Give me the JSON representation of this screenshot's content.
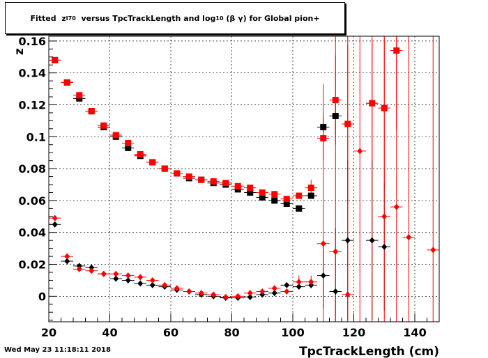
{
  "title": {
    "fitted": "Fitted",
    "z": "z",
    "z_sub": "I70",
    "versus": "versus TpcTrackLength and log",
    "log_sub": "10",
    "tail": "(β γ) for Global pion+"
  },
  "timestamp": "Wed May 23 11:18:11 2018",
  "chart_data": {
    "type": "scatter",
    "title": "Fitted zI70 versus TpcTrackLength and log10 (β γ) for Global pion+",
    "xlabel": "TpcTrackLength (cm)",
    "ylabel": "z",
    "xlim": [
      20,
      148
    ],
    "ylim": [
      -0.016,
      0.163
    ],
    "xticks": [
      20,
      40,
      60,
      80,
      100,
      120,
      140
    ],
    "yticks": [
      0,
      0.02,
      0.04,
      0.06,
      0.08,
      0.1,
      0.12,
      0.14,
      0.16
    ],
    "xtick_labels": [
      "20",
      "40",
      "60",
      "80",
      "100",
      "120",
      "140"
    ],
    "ytick_labels": [
      "0",
      "0.02",
      "0.04",
      "0.06",
      "0.08",
      "0.1",
      "0.12",
      "0.14",
      "0.16"
    ],
    "grid": true,
    "colors": {
      "black": "#000000",
      "red": "#ff0000"
    },
    "series": [
      {
        "marker": "square",
        "color": "#000000",
        "points": [
          [
            22,
            0.148
          ],
          [
            26,
            0.134
          ],
          [
            30,
            0.124
          ],
          [
            34,
            0.116
          ],
          [
            38,
            0.106
          ],
          [
            42,
            0.1
          ],
          [
            46,
            0.093
          ],
          [
            50,
            0.088
          ],
          [
            54,
            0.084
          ],
          [
            58,
            0.08
          ],
          [
            62,
            0.077
          ],
          [
            66,
            0.074
          ],
          [
            70,
            0.073
          ],
          [
            74,
            0.071
          ],
          [
            78,
            0.07
          ],
          [
            82,
            0.067
          ],
          [
            86,
            0.065
          ],
          [
            90,
            0.062
          ],
          [
            94,
            0.06
          ],
          [
            98,
            0.058
          ],
          [
            102,
            0.055
          ],
          [
            106,
            0.063
          ],
          [
            110,
            0.106
          ],
          [
            114,
            0.113
          ]
        ],
        "err": [
          0,
          0,
          0,
          0,
          0,
          0,
          0,
          0,
          0,
          0,
          0,
          0,
          0,
          0,
          0,
          0,
          0,
          0,
          0,
          0,
          0,
          0,
          0,
          0.012
        ]
      },
      {
        "marker": "square",
        "color": "#ff0000",
        "points": [
          [
            22,
            0.148
          ],
          [
            26,
            0.134
          ],
          [
            30,
            0.126
          ],
          [
            34,
            0.116
          ],
          [
            38,
            0.107
          ],
          [
            42,
            0.101
          ],
          [
            46,
            0.096
          ],
          [
            50,
            0.089
          ],
          [
            54,
            0.084
          ],
          [
            58,
            0.08
          ],
          [
            62,
            0.077
          ],
          [
            66,
            0.075
          ],
          [
            70,
            0.073
          ],
          [
            74,
            0.072
          ],
          [
            78,
            0.071
          ],
          [
            82,
            0.069
          ],
          [
            86,
            0.068
          ],
          [
            90,
            0.065
          ],
          [
            94,
            0.064
          ],
          [
            98,
            0.061
          ],
          [
            102,
            0.063
          ],
          [
            106,
            0.068
          ],
          [
            110,
            0.099
          ],
          [
            114,
            0.123
          ],
          [
            118,
            0.108
          ],
          [
            126,
            0.121
          ],
          [
            130,
            0.118
          ],
          [
            134,
            0.154
          ]
        ],
        "err": [
          0,
          0,
          0,
          0,
          0,
          0,
          0,
          0,
          0,
          0,
          0,
          0,
          0,
          0,
          0,
          0,
          0,
          0,
          0,
          0,
          0,
          0.005,
          0.014,
          0.028,
          0.05,
          0.04,
          0.05,
          0.05
        ]
      },
      {
        "marker": "diamond",
        "color": "#000000",
        "points": [
          [
            22,
            0.045
          ],
          [
            26,
            0.022
          ],
          [
            30,
            0.019
          ],
          [
            34,
            0.018
          ],
          [
            38,
            0.014
          ],
          [
            42,
            0.011
          ],
          [
            46,
            0.01
          ],
          [
            50,
            0.008
          ],
          [
            54,
            0.007
          ],
          [
            58,
            0.006
          ],
          [
            62,
            0.004
          ],
          [
            66,
            0.003
          ],
          [
            70,
            0.001
          ],
          [
            74,
            0.0
          ],
          [
            78,
            -0.001
          ],
          [
            82,
            -0.001
          ],
          [
            86,
            -0.0005
          ],
          [
            90,
            0.001
          ],
          [
            94,
            0.002
          ],
          [
            98,
            0.007
          ],
          [
            102,
            0.006
          ],
          [
            106,
            0.007
          ],
          [
            110,
            0.013
          ],
          [
            114,
            0.003
          ],
          [
            118,
            0.035
          ],
          [
            126,
            0.035
          ],
          [
            130,
            0.031
          ]
        ],
        "err": [
          0,
          0,
          0,
          0,
          0,
          0,
          0,
          0,
          0,
          0,
          0,
          0,
          0,
          0,
          0,
          0,
          0,
          0,
          0,
          0,
          0,
          0,
          0.02,
          0.04,
          0.05,
          0.05,
          0.04
        ]
      },
      {
        "marker": "diamond",
        "color": "#ff0000",
        "points": [
          [
            22,
            0.049
          ],
          [
            26,
            0.025
          ],
          [
            30,
            0.017
          ],
          [
            34,
            0.016
          ],
          [
            38,
            0.014
          ],
          [
            42,
            0.014
          ],
          [
            46,
            0.013
          ],
          [
            50,
            0.012
          ],
          [
            54,
            0.01
          ],
          [
            58,
            0.007
          ],
          [
            62,
            0.005
          ],
          [
            66,
            0.003
          ],
          [
            70,
            0.002
          ],
          [
            74,
            0.001
          ],
          [
            78,
            -0.0005
          ],
          [
            82,
            0.0
          ],
          [
            86,
            0.002
          ],
          [
            90,
            0.003
          ],
          [
            94,
            0.005
          ],
          [
            98,
            0.003
          ],
          [
            102,
            0.009
          ],
          [
            106,
            0.009
          ],
          [
            110,
            0.033
          ],
          [
            114,
            0.028
          ],
          [
            118,
            0.001
          ],
          [
            122,
            0.091
          ],
          [
            126,
            0.121
          ],
          [
            130,
            0.05
          ],
          [
            134,
            0.056
          ],
          [
            138,
            0.037
          ],
          [
            146,
            0.029
          ]
        ],
        "err": [
          0,
          0,
          0,
          0,
          0,
          0,
          0,
          0,
          0,
          0,
          0,
          0,
          0,
          0,
          0,
          0,
          0,
          0,
          0,
          0,
          0.004,
          0.004,
          0.1,
          0.2,
          0.2,
          0.2,
          0.2,
          0.2,
          0.2,
          0.2,
          0.2
        ]
      }
    ]
  }
}
